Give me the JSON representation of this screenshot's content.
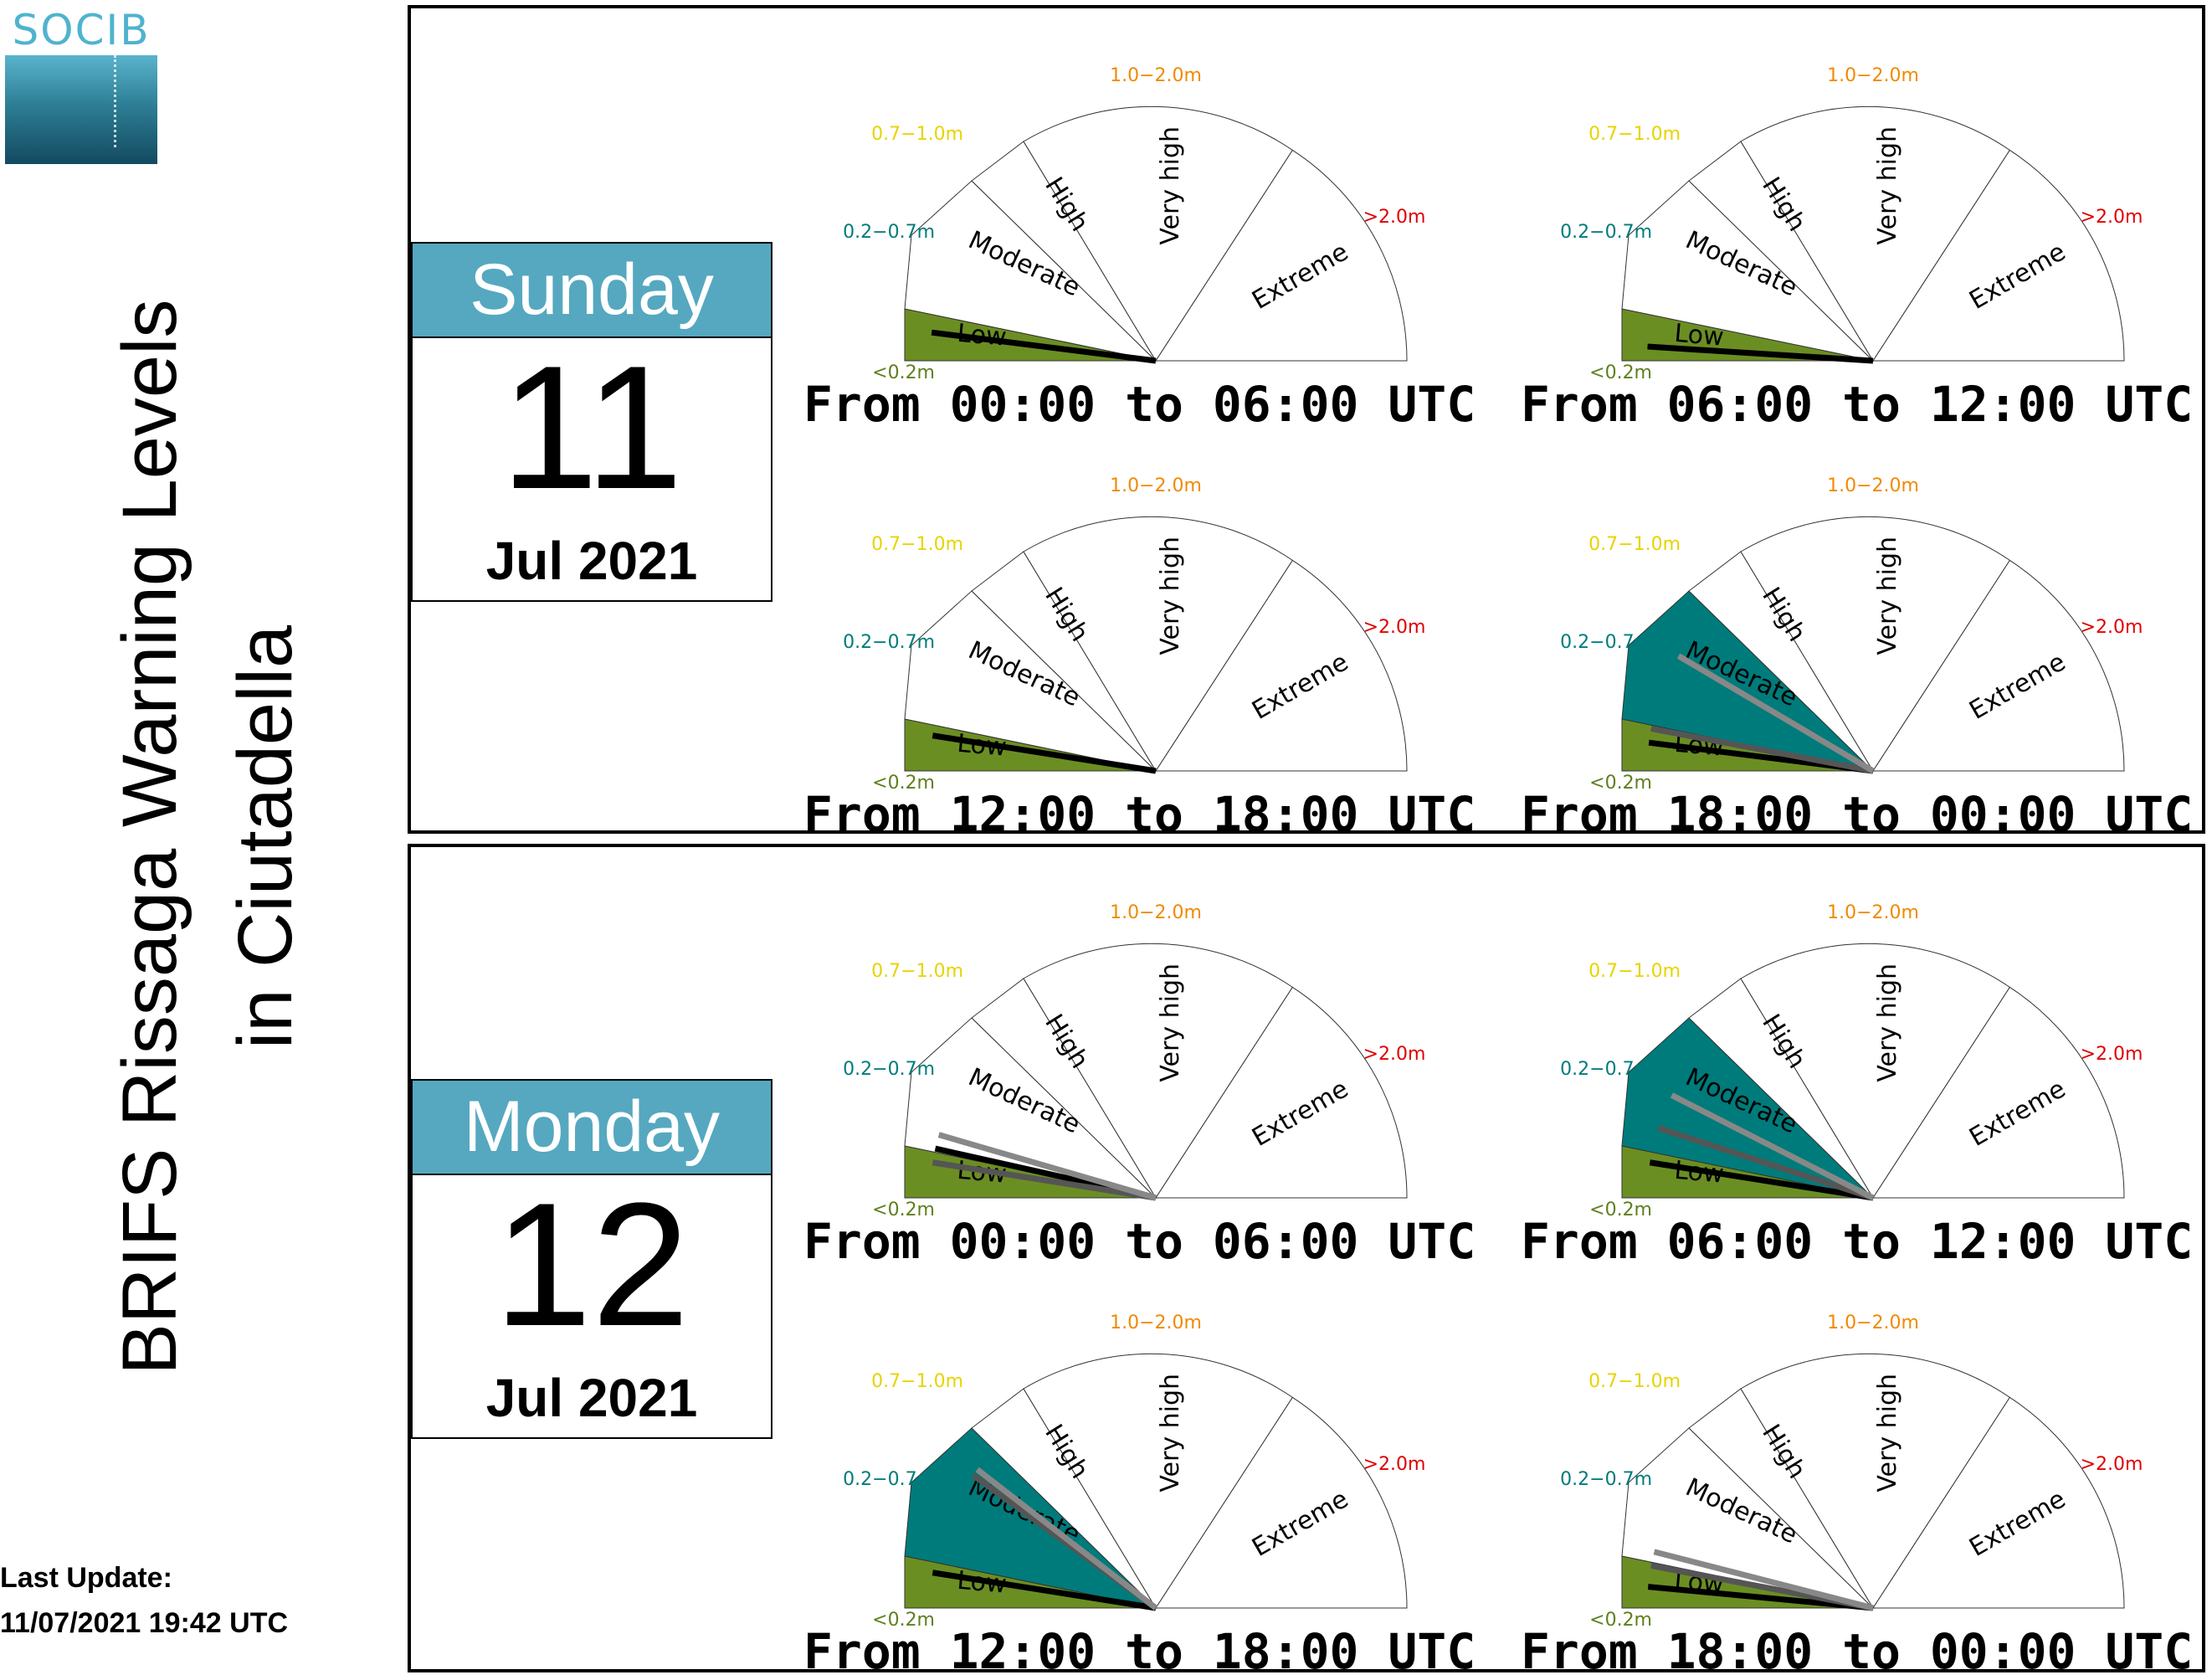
{
  "logo": {
    "text": "SOCIB"
  },
  "page_title": {
    "line1": "BRIFS Rissaga Warning Levels",
    "line2": "in Ciutadella"
  },
  "last_update": {
    "label": "Last Update:",
    "value": "11/07/2021 19:42 UTC"
  },
  "chart_data": {
    "type": "gauge",
    "sectors": [
      {
        "name": "Low",
        "range_label": "<0.2m",
        "color": "#6b8e23",
        "label_color": "#5f7f1e"
      },
      {
        "name": "Moderate",
        "range_label": "0.2−0.7m",
        "color": "#007b7b",
        "label_color": "#007b7b"
      },
      {
        "name": "High",
        "range_label": "0.7−1.0m",
        "color": "#f0dc00",
        "label_color": "#e8d300"
      },
      {
        "name": "Very high",
        "range_label": "1.0−2.0m",
        "color": "#ff8c00",
        "label_color": "#f08a00"
      },
      {
        "name": "Extreme",
        "range_label": ">2.0m",
        "color": "#e00000",
        "label_color": "#e00000"
      }
    ],
    "needle_colors": [
      "#000000",
      "#555555",
      "#888888"
    ],
    "days": [
      {
        "weekday": "Sunday",
        "day": "11",
        "month_year": "Jul 2021",
        "periods": [
          {
            "label": "From 00:00 to 06:00 UTC",
            "active_level": 0,
            "needles": [
              0.04
            ]
          },
          {
            "label": "From 06:00 to 12:00 UTC",
            "active_level": 0,
            "needles": [
              0.02
            ]
          },
          {
            "label": "From 12:00 to 18:00 UTC",
            "active_level": 0,
            "needles": [
              0.05
            ]
          },
          {
            "label": "From 18:00 to 00:00 UTC",
            "active_level": 1,
            "needles": [
              0.04,
              0.06,
              0.17
            ]
          }
        ]
      },
      {
        "weekday": "Monday",
        "day": "12",
        "month_year": "Jul 2021",
        "periods": [
          {
            "label": "From 00:00 to 06:00 UTC",
            "active_level": 0,
            "needles": [
              0.07,
              0.05,
              0.09
            ]
          },
          {
            "label": "From 06:00 to 12:00 UTC",
            "active_level": 1,
            "needles": [
              0.05,
              0.1,
              0.15
            ]
          },
          {
            "label": "From 12:00 to 18:00 UTC",
            "active_level": 1,
            "needles": [
              0.05,
              0.2,
              0.21
            ]
          },
          {
            "label": "From 18:00 to 00:00 UTC",
            "active_level": 0,
            "needles": [
              0.03,
              0.06,
              0.08
            ]
          }
        ]
      }
    ]
  }
}
